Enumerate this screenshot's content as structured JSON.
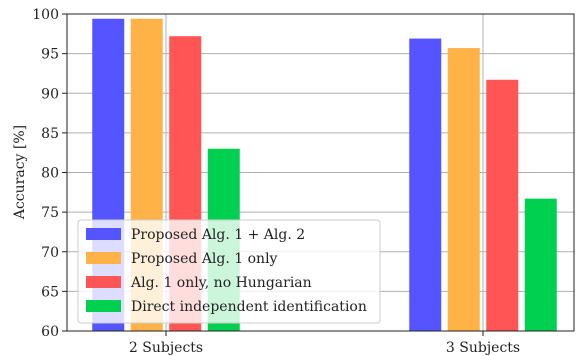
{
  "chart_data": {
    "type": "bar",
    "title": "",
    "xlabel": "",
    "ylabel": "Accuracy [%]",
    "ylim": [
      60,
      100
    ],
    "yticks": [
      60,
      65,
      70,
      75,
      80,
      85,
      90,
      95,
      100
    ],
    "categories": [
      "2 Subjects",
      "3 Subjects"
    ],
    "grid": true,
    "legend_position": "lower-left",
    "series": [
      {
        "name": "Proposed Alg. 1 + Alg. 2",
        "color": "#5555ff",
        "values": [
          99.4,
          96.9
        ]
      },
      {
        "name": "Proposed Alg. 1 only",
        "color": "#ffb347",
        "values": [
          99.4,
          95.7
        ]
      },
      {
        "name": "Alg. 1 only, no Hungarian",
        "color": "#ff5555",
        "values": [
          97.2,
          91.7
        ]
      },
      {
        "name": "Direct independent identification",
        "color": "#00d050",
        "values": [
          83.0,
          76.7
        ]
      }
    ]
  }
}
